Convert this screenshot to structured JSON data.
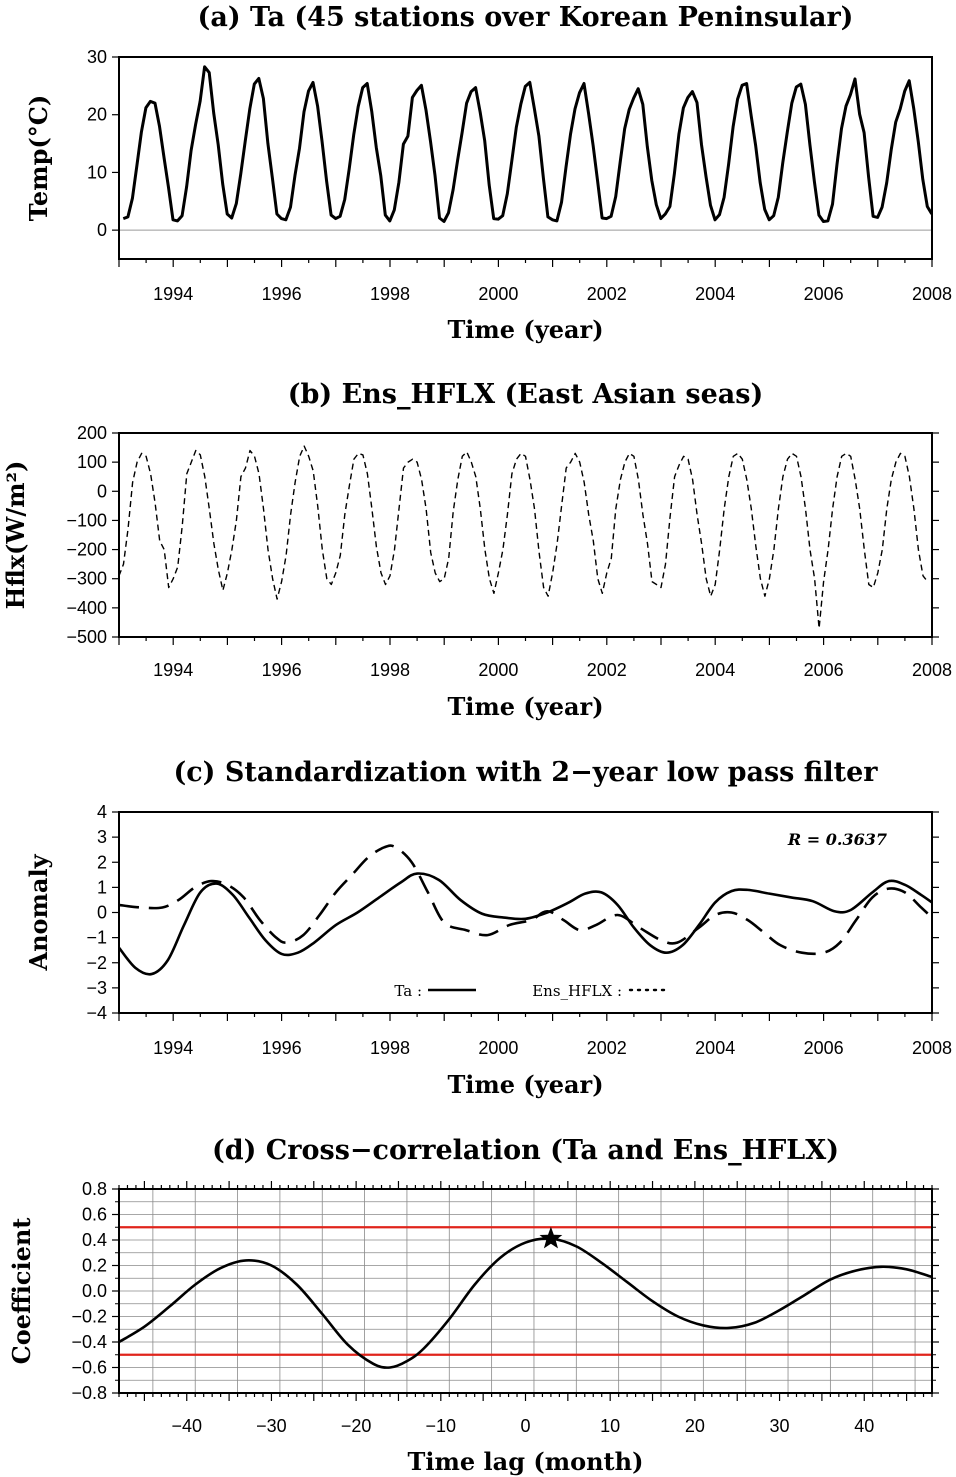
{
  "chart_data": [
    {
      "id": "a",
      "type": "line",
      "title": "(a) Ta (45 stations over Korean Peninsular)",
      "xlabel": "Time (year)",
      "ylabel": "Temp(°C)",
      "xlim": [
        1993,
        2008
      ],
      "ylim": [
        -5,
        30
      ],
      "xticks": [
        1994,
        1996,
        1998,
        2000,
        2002,
        2004,
        2006,
        2008
      ],
      "yticks": [
        0,
        10,
        20,
        30
      ],
      "x_start": 1993.08,
      "x_step_months": 1,
      "series": [
        {
          "name": "Ta",
          "style": "solid",
          "values": [
            2.0,
            2.3,
            5.5,
            11.2,
            17.0,
            21.2,
            22.3,
            22.0,
            18.0,
            12.6,
            7.4,
            1.8,
            1.6,
            2.5,
            7.5,
            13.8,
            18.3,
            22.3,
            28.3,
            27.3,
            20.3,
            14.8,
            8.0,
            2.8,
            2.1,
            4.6,
            9.8,
            15.5,
            21.0,
            25.3,
            26.3,
            22.8,
            15.0,
            9.0,
            2.8,
            2.0,
            1.8,
            4.0,
            9.5,
            14.2,
            20.5,
            24.1,
            25.6,
            21.5,
            15.3,
            8.5,
            2.6,
            2.0,
            2.4,
            5.3,
            10.6,
            16.5,
            21.4,
            24.7,
            25.4,
            20.5,
            14.3,
            9.4,
            2.6,
            1.6,
            3.5,
            8.3,
            14.9,
            16.3,
            23.0,
            24.2,
            25.1,
            20.8,
            15.4,
            9.5,
            2.1,
            1.5,
            3.0,
            7.0,
            12.1,
            16.9,
            22.0,
            24.0,
            24.7,
            20.4,
            15.5,
            7.8,
            2.0,
            1.9,
            2.5,
            6.3,
            12.0,
            17.8,
            21.8,
            24.9,
            25.6,
            21.0,
            16.3,
            9.0,
            2.3,
            1.8,
            1.6,
            4.8,
            10.9,
            16.6,
            21.0,
            23.8,
            25.4,
            20.2,
            14.7,
            8.5,
            2.1,
            2.0,
            2.4,
            5.8,
            11.8,
            17.6,
            20.9,
            22.9,
            24.5,
            21.8,
            14.5,
            8.6,
            4.4,
            2.0,
            2.8,
            4.1,
            9.8,
            16.6,
            21.2,
            23.0,
            24.0,
            22.1,
            14.8,
            9.3,
            4.3,
            1.8,
            2.7,
            5.7,
            11.4,
            17.9,
            22.7,
            25.1,
            25.4,
            19.8,
            14.6,
            8.2,
            3.6,
            1.8,
            2.5,
            5.7,
            11.7,
            17.0,
            22.0,
            24.8,
            25.3,
            21.8,
            14.8,
            8.4,
            2.6,
            1.5,
            1.6,
            4.5,
            11.4,
            17.6,
            21.5,
            23.5,
            26.2,
            20.1,
            16.9,
            9.2,
            2.4,
            2.2,
            4.0,
            8.2,
            13.9,
            18.7,
            21.0,
            24.1,
            25.9,
            21.0,
            15.3,
            8.8,
            4.1,
            2.8
          ]
        }
      ]
    },
    {
      "id": "b",
      "type": "line",
      "title": "(b) Ens_HFLX (East Asian seas)",
      "xlabel": "Time (year)",
      "ylabel": "Hflx(W/m²)",
      "xlim": [
        1993,
        2008
      ],
      "ylim": [
        -500,
        200
      ],
      "xticks": [
        1994,
        1996,
        1998,
        2000,
        2002,
        2004,
        2006,
        2008
      ],
      "yticks": [
        200,
        100,
        0,
        -100,
        -200,
        -300,
        -400,
        -500
      ],
      "x_start": 1993.0,
      "x_step_months": 1,
      "series": [
        {
          "name": "Ens_HFLX",
          "style": "dashed",
          "values": [
            -290,
            -250,
            -130,
            30,
            100,
            130,
            120,
            60,
            -40,
            -170,
            -200,
            -330,
            -300,
            -260,
            -120,
            60,
            100,
            140,
            125,
            50,
            -60,
            -180,
            -270,
            -340,
            -280,
            -200,
            -100,
            50,
            80,
            140,
            120,
            60,
            -60,
            -200,
            -300,
            -370,
            -310,
            -220,
            -80,
            30,
            120,
            155,
            120,
            70,
            -50,
            -200,
            -300,
            -320,
            -280,
            -220,
            -80,
            20,
            110,
            130,
            125,
            60,
            -60,
            -190,
            -280,
            -320,
            -290,
            -200,
            -60,
            80,
            100,
            110,
            100,
            40,
            -60,
            -210,
            -280,
            -310,
            -300,
            -230,
            -70,
            40,
            120,
            135,
            100,
            50,
            -60,
            -200,
            -300,
            -350,
            -280,
            -200,
            -80,
            60,
            110,
            130,
            120,
            40,
            -60,
            -210,
            -330,
            -360,
            -280,
            -180,
            -50,
            80,
            100,
            130,
            100,
            30,
            -80,
            -170,
            -300,
            -350,
            -280,
            -230,
            -60,
            40,
            100,
            130,
            120,
            40,
            -80,
            -180,
            -310,
            -320,
            -330,
            -250,
            -90,
            50,
            90,
            120,
            110,
            40,
            -80,
            -180,
            -300,
            -360,
            -320,
            -200,
            -60,
            50,
            120,
            130,
            110,
            40,
            -60,
            -190,
            -300,
            -360,
            -300,
            -200,
            -60,
            50,
            110,
            130,
            120,
            50,
            -60,
            -200,
            -300,
            -470,
            -310,
            -200,
            -60,
            50,
            120,
            130,
            120,
            40,
            -60,
            -200,
            -320,
            -330,
            -280,
            -200,
            -60,
            40,
            100,
            130,
            120,
            50,
            -60,
            -200,
            -290,
            -310
          ]
        }
      ]
    },
    {
      "id": "c",
      "type": "line",
      "title": "(c) Standardization with 2−year low pass filter",
      "xlabel": "Time (year)",
      "ylabel": "Anomaly",
      "xlim": [
        1993,
        2008
      ],
      "ylim": [
        -4,
        4
      ],
      "xticks": [
        1994,
        1996,
        1998,
        2000,
        2002,
        2004,
        2006,
        2008
      ],
      "yticks": [
        4,
        3,
        2,
        1,
        0,
        -1,
        -2,
        -3,
        -4
      ],
      "annotation": "R = 0.3637",
      "legend": [
        "Ta : ",
        "Ens_HFLX : "
      ],
      "legend_position": "bottom",
      "series": [
        {
          "name": "Ta",
          "style": "solid",
          "x": [
            1993.0,
            1993.3,
            1993.6,
            1993.9,
            1994.2,
            1994.5,
            1994.8,
            1995.1,
            1995.4,
            1995.7,
            1996.0,
            1996.3,
            1996.6,
            1997.0,
            1997.4,
            1997.8,
            1998.2,
            1998.5,
            1998.9,
            1999.3,
            1999.7,
            2000.1,
            2000.5,
            2000.9,
            2001.3,
            2001.6,
            2001.9,
            2002.2,
            2002.5,
            2002.8,
            2003.1,
            2003.4,
            2003.7,
            2004.0,
            2004.3,
            2004.6,
            2005.0,
            2005.4,
            2005.8,
            2006.2,
            2006.5,
            2006.9,
            2007.2,
            2007.5,
            2007.8,
            2008.0
          ],
          "values": [
            -1.4,
            -2.2,
            -2.45,
            -1.9,
            -0.5,
            0.8,
            1.15,
            0.7,
            -0.2,
            -1.1,
            -1.65,
            -1.6,
            -1.2,
            -0.5,
            0.0,
            0.6,
            1.2,
            1.55,
            1.3,
            0.5,
            -0.05,
            -0.2,
            -0.25,
            0.0,
            0.4,
            0.75,
            0.8,
            0.3,
            -0.6,
            -1.3,
            -1.6,
            -1.3,
            -0.5,
            0.4,
            0.85,
            0.9,
            0.75,
            0.6,
            0.45,
            0.05,
            0.1,
            0.8,
            1.25,
            1.1,
            0.7,
            0.4
          ]
        },
        {
          "name": "Ens_HFLX",
          "style": "dashed",
          "x": [
            1993.0,
            1993.4,
            1993.8,
            1994.1,
            1994.4,
            1994.7,
            1995.0,
            1995.3,
            1995.6,
            1995.9,
            1996.1,
            1996.4,
            1996.7,
            1997.0,
            1997.3,
            1997.6,
            1997.9,
            1998.1,
            1998.4,
            1998.7,
            1999.0,
            1999.4,
            1999.8,
            2000.2,
            2000.6,
            2000.9,
            2001.2,
            2001.5,
            2001.8,
            2002.2,
            2002.6,
            2003.0,
            2003.3,
            2003.7,
            2004.0,
            2004.3,
            2004.6,
            2004.9,
            2005.2,
            2005.6,
            2006.0,
            2006.3,
            2006.6,
            2006.9,
            2007.2,
            2007.5,
            2007.8,
            2008.0
          ],
          "values": [
            0.3,
            0.2,
            0.2,
            0.5,
            1.0,
            1.25,
            1.1,
            0.6,
            -0.3,
            -1.0,
            -1.2,
            -0.9,
            -0.1,
            0.8,
            1.5,
            2.2,
            2.6,
            2.6,
            2.0,
            0.8,
            -0.4,
            -0.7,
            -0.9,
            -0.5,
            -0.3,
            0.05,
            -0.3,
            -0.7,
            -0.5,
            -0.1,
            -0.6,
            -1.1,
            -1.2,
            -0.6,
            -0.1,
            0.0,
            -0.3,
            -0.8,
            -1.3,
            -1.6,
            -1.6,
            -1.2,
            -0.3,
            0.6,
            0.95,
            0.8,
            0.2,
            -0.2
          ]
        }
      ]
    },
    {
      "id": "d",
      "type": "line",
      "title": "(d) Cross−correlation (Ta and Ens_HFLX)",
      "xlabel": "Time lag (month)",
      "ylabel": "Coefficient",
      "xlim": [
        -48,
        48
      ],
      "ylim": [
        -0.8,
        0.8
      ],
      "xticks": [
        -40,
        -30,
        -20,
        -10,
        0,
        10,
        20,
        30,
        40
      ],
      "yticks": [
        0.8,
        0.6,
        0.4,
        0.2,
        0.0,
        -0.2,
        -0.4,
        -0.6,
        -0.8
      ],
      "threshold_lines": [
        0.5,
        -0.5
      ],
      "threshold_color": "#e0241b",
      "marker": {
        "shape": "star",
        "x": 3,
        "y": 0.41
      },
      "series": [
        {
          "name": "Cross-correlation",
          "style": "solid",
          "x": [
            -48,
            -45,
            -42,
            -39,
            -36,
            -33,
            -30,
            -27,
            -24,
            -21,
            -18,
            -16,
            -14,
            -12,
            -9,
            -6,
            -3,
            0,
            3,
            6,
            9,
            12,
            15,
            18,
            21,
            24,
            27,
            30,
            33,
            36,
            39,
            42,
            45,
            48
          ],
          "values": [
            -0.4,
            -0.28,
            -0.12,
            0.05,
            0.18,
            0.24,
            0.2,
            0.05,
            -0.18,
            -0.42,
            -0.57,
            -0.6,
            -0.55,
            -0.45,
            -0.22,
            0.05,
            0.26,
            0.38,
            0.41,
            0.35,
            0.22,
            0.07,
            -0.08,
            -0.2,
            -0.27,
            -0.29,
            -0.25,
            -0.15,
            -0.03,
            0.09,
            0.16,
            0.19,
            0.17,
            0.11
          ]
        }
      ]
    }
  ]
}
